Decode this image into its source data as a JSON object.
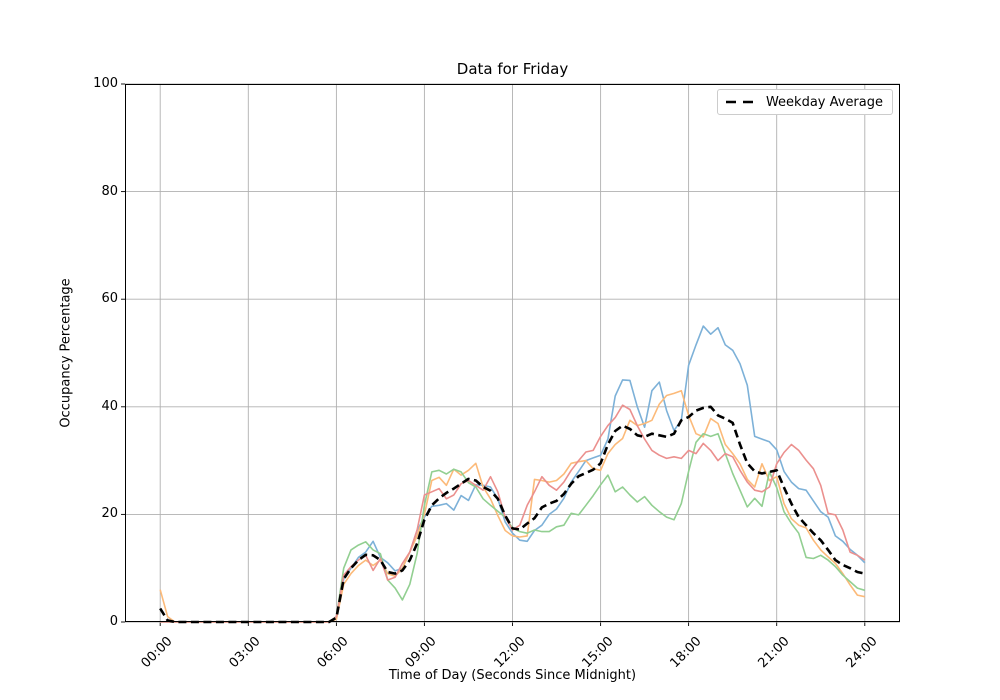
{
  "legend": {
    "label": "Weekday Average"
  },
  "figure": {
    "background": "#ffffff",
    "grid_color": "#b0b0b0",
    "spine_color": "#000000"
  },
  "chart_data": {
    "type": "line",
    "title": "Data for Friday",
    "xlabel": "Time of Day (Seconds Since Midnight)",
    "ylabel": "Occupancy Percentage",
    "ylim": [
      0,
      100
    ],
    "y_ticks": [
      0,
      20,
      40,
      60,
      80,
      100
    ],
    "xlim_hours": [
      -1.2,
      25.2
    ],
    "x_tick_hours": [
      0,
      3,
      6,
      9,
      12,
      15,
      18,
      21,
      24
    ],
    "x_tick_labels": [
      "00:00",
      "03:00",
      "06:00",
      "09:00",
      "12:00",
      "15:00",
      "18:00",
      "21:00",
      "24:00"
    ],
    "grid": true,
    "legend_position": "upper right",
    "x_start_hour": 0,
    "x_step_hours": 0.25,
    "series": [
      {
        "name": "day-1-blue",
        "color": "#7db1d8",
        "width": 1.6,
        "dashed": false,
        "values": [
          0,
          0,
          0,
          0,
          0,
          0,
          0,
          0,
          0,
          0,
          0,
          0,
          0,
          0,
          0,
          0,
          0,
          0,
          0,
          0,
          0,
          0,
          0,
          0,
          1,
          8,
          10,
          12,
          13,
          15,
          12,
          11,
          9.5,
          10,
          13,
          17,
          19.5,
          21.5,
          21.7,
          22,
          20.8,
          23.5,
          22.6,
          25.5,
          25.4,
          25.1,
          22.9,
          18.6,
          16.5,
          15.2,
          15,
          17,
          18,
          20,
          21,
          23,
          26,
          28,
          30,
          30.5,
          31,
          34,
          42,
          45,
          44.9,
          40,
          36.2,
          43,
          44.6,
          39.3,
          35.6,
          37.5,
          47.7,
          51.5,
          55,
          53.5,
          54.7,
          51.5,
          50.5,
          48,
          44,
          34.5,
          34,
          33.5,
          32,
          28,
          26,
          24.8,
          24.5,
          22.5,
          20.5,
          19.5,
          16,
          15,
          13.5,
          12.4,
          11
        ]
      },
      {
        "name": "day-2-orange",
        "color": "#fcba79",
        "width": 1.6,
        "dashed": false,
        "values": [
          6,
          1,
          0,
          0,
          0,
          0,
          0,
          0,
          0,
          0,
          0,
          0,
          0,
          0,
          0,
          0,
          0,
          0,
          0,
          0,
          0,
          0,
          0,
          0,
          0.5,
          7,
          9,
          10.5,
          11.5,
          10.5,
          11.5,
          9,
          8.5,
          10,
          13,
          16,
          20,
          26.3,
          26.9,
          25.4,
          28.4,
          27.3,
          28.2,
          29.5,
          25.1,
          22.9,
          19.8,
          17,
          16,
          15.8,
          16,
          26.5,
          26.3,
          26,
          26.3,
          27.5,
          29.5,
          29.8,
          30,
          28.5,
          28.2,
          31.3,
          33,
          34.1,
          37.5,
          36.5,
          36.9,
          37.5,
          40.5,
          42.1,
          42.5,
          43,
          38.4,
          35,
          34.4,
          37.8,
          36.9,
          33,
          31.3,
          29.4,
          26.5,
          25.1,
          29.4,
          26.3,
          27,
          22,
          19.2,
          18,
          17.5,
          15.2,
          13.4,
          12.1,
          10.9,
          9,
          6.9,
          5,
          4.7
        ]
      },
      {
        "name": "day-3-green",
        "color": "#92cf91",
        "width": 1.6,
        "dashed": false,
        "values": [
          0,
          0,
          0,
          0,
          0,
          0,
          0,
          0,
          0,
          0,
          0,
          0,
          0,
          0,
          0,
          0,
          0,
          0,
          0,
          0,
          0,
          0,
          0,
          0,
          1,
          10,
          13.4,
          14.3,
          14.9,
          13.4,
          12.7,
          7.8,
          6.3,
          4.1,
          7,
          12.7,
          21.7,
          27.9,
          28.2,
          27.5,
          28.4,
          27.9,
          25.9,
          25.1,
          22.9,
          21.7,
          20.6,
          19.5,
          17.5,
          16.8,
          16.5,
          17.1,
          16.8,
          16.8,
          17.7,
          18,
          20.2,
          19.9,
          21.7,
          23.5,
          25.5,
          27.3,
          24.2,
          25.1,
          23.6,
          22.3,
          23.3,
          21.7,
          20.5,
          19.5,
          19,
          22,
          28,
          33.4,
          35,
          34.5,
          35,
          31.3,
          27.6,
          24.5,
          21.4,
          23,
          21.5,
          27.9,
          25,
          20.5,
          18.3,
          16.5,
          12,
          11.8,
          12.4,
          11.5,
          10.3,
          8.7,
          7.5,
          6.3,
          5.9
        ]
      },
      {
        "name": "day-4-red",
        "color": "#eb908e",
        "width": 1.6,
        "dashed": false,
        "values": [
          0,
          0,
          0,
          0,
          0,
          0,
          0,
          0,
          0,
          0,
          0,
          0,
          0,
          0,
          0,
          0,
          0,
          0,
          0,
          0,
          0,
          0,
          0,
          0,
          1,
          8.7,
          10.3,
          11.5,
          12.4,
          9.6,
          11.8,
          7.8,
          8.3,
          10.9,
          13,
          17.1,
          23.6,
          24.2,
          24.8,
          22.9,
          23.6,
          25.7,
          26.3,
          25.4,
          24.5,
          27,
          24.2,
          19.5,
          17.1,
          18,
          21.7,
          24.2,
          27,
          25.4,
          24.5,
          26,
          28.2,
          30,
          31.6,
          31.9,
          34.5,
          36.5,
          38,
          40.3,
          39.5,
          36.5,
          34,
          31.9,
          31,
          30.4,
          30.7,
          30.4,
          31.9,
          31.3,
          33.2,
          31.9,
          30,
          31.3,
          30.7,
          28.2,
          26,
          24.5,
          24.2,
          25.1,
          29.4,
          31.5,
          33,
          31.9,
          30.1,
          28.5,
          25.4,
          20.2,
          19.9,
          17.1,
          13,
          12.4,
          11.5
        ]
      },
      {
        "name": "Weekday Average",
        "color": "#000000",
        "width": 2.6,
        "dashed": true,
        "values": [
          2.5,
          0.3,
          0,
          0,
          0,
          0,
          0,
          0,
          0,
          0,
          0,
          0,
          0,
          0,
          0,
          0,
          0,
          0,
          0,
          0,
          0,
          0,
          0,
          0,
          0.8,
          8,
          10,
          11.5,
          12.5,
          12.4,
          11.5,
          9.3,
          9,
          9.6,
          11.5,
          14.6,
          19,
          21.7,
          23,
          24,
          24.8,
          25.7,
          26.6,
          26.3,
          25.1,
          24.4,
          22.9,
          19.8,
          17.4,
          17.2,
          18.3,
          19.3,
          21.3,
          22,
          22.5,
          23.8,
          25.7,
          27.1,
          27.7,
          28.3,
          29.5,
          33,
          35.5,
          36.5,
          35.9,
          34.7,
          34.4,
          35,
          34.7,
          34.4,
          35,
          37.5,
          38.1,
          39.3,
          39.8,
          40,
          38.4,
          37.8,
          37,
          33,
          29.5,
          28,
          27.6,
          27.9,
          28.2,
          25,
          22,
          19.5,
          18,
          16.5,
          15.2,
          13.4,
          11.5,
          10.6,
          10,
          9.3,
          9
        ]
      }
    ]
  }
}
